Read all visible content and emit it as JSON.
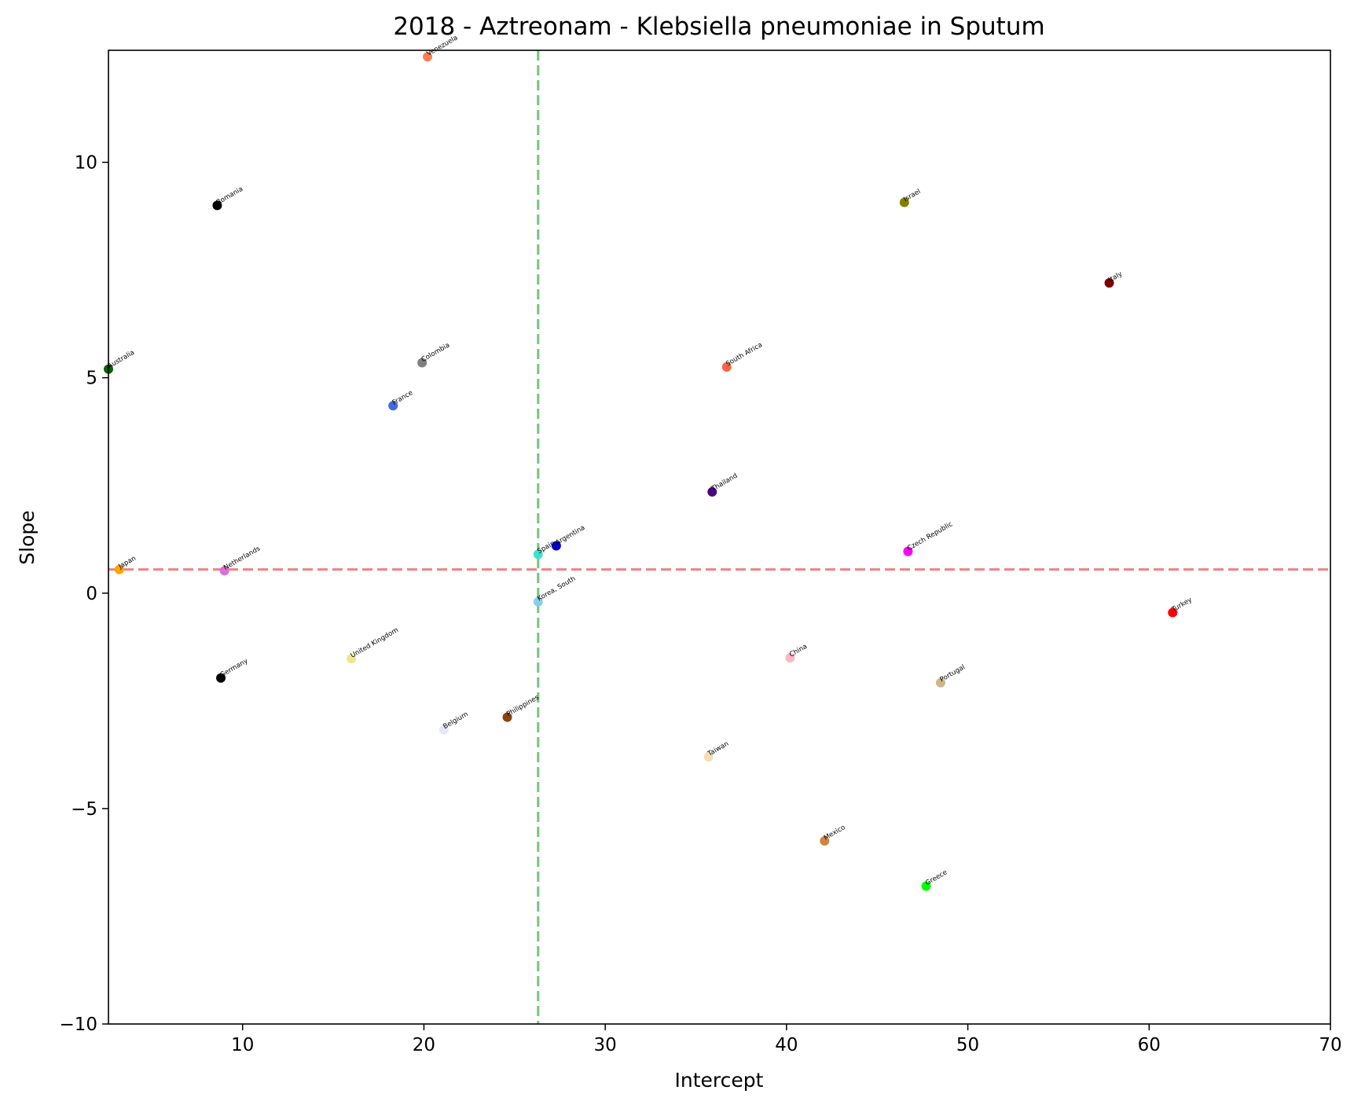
{
  "chart_data": {
    "type": "scatter",
    "title": "2018 - Aztreonam - Klebsiella pneumoniae in Sputum",
    "xlabel": "Intercept",
    "ylabel": "Slope",
    "xlim": [
      2.6,
      70
    ],
    "ylim": [
      -10,
      12.6
    ],
    "xticks": [
      10,
      20,
      30,
      40,
      50,
      60,
      70
    ],
    "yticks": [
      -10,
      -5,
      0,
      5,
      10
    ],
    "grid": false,
    "reference_lines": [
      {
        "orientation": "horizontal",
        "value": 0.55,
        "color": "#f08080"
      },
      {
        "orientation": "vertical",
        "value": 26.3,
        "color": "#4caf50"
      }
    ],
    "points": [
      {
        "label": "Venezuela",
        "x": 20.2,
        "y": 12.45,
        "color": "#ff7f50"
      },
      {
        "label": "Romania",
        "x": 8.6,
        "y": 9.0,
        "color": "#000000"
      },
      {
        "label": "Israel",
        "x": 46.5,
        "y": 9.07,
        "color": "#808000"
      },
      {
        "label": "Italy",
        "x": 57.8,
        "y": 7.2,
        "color": "#800000"
      },
      {
        "label": "Australia",
        "x": 2.6,
        "y": 5.2,
        "color": "#006400"
      },
      {
        "label": "Colombia",
        "x": 19.9,
        "y": 5.35,
        "color": "#808080"
      },
      {
        "label": "South Africa",
        "x": 36.7,
        "y": 5.25,
        "color": "#ff6347"
      },
      {
        "label": "France",
        "x": 18.3,
        "y": 4.35,
        "color": "#4169e1"
      },
      {
        "label": "Thailand",
        "x": 35.9,
        "y": 2.35,
        "color": "#4b0082"
      },
      {
        "label": "Spain",
        "x": 26.3,
        "y": 0.9,
        "color": "#40e0d0"
      },
      {
        "label": "Argentina",
        "x": 27.3,
        "y": 1.1,
        "color": "#0000cd"
      },
      {
        "label": "Czech Republic",
        "x": 46.7,
        "y": 0.97,
        "color": "#ff00ff"
      },
      {
        "label": "Japan",
        "x": 3.2,
        "y": 0.55,
        "color": "#ffa500"
      },
      {
        "label": "Netherlands",
        "x": 9.0,
        "y": 0.52,
        "color": "#da70d6"
      },
      {
        "label": "Korea, South",
        "x": 26.3,
        "y": -0.2,
        "color": "#87ceeb"
      },
      {
        "label": "Turkey",
        "x": 61.3,
        "y": -0.45,
        "color": "#ff0000"
      },
      {
        "label": "United Kingdom",
        "x": 16.0,
        "y": -1.52,
        "color": "#f0e68c"
      },
      {
        "label": "China",
        "x": 40.2,
        "y": -1.5,
        "color": "#ffb6c1"
      },
      {
        "label": "Germany",
        "x": 8.8,
        "y": -1.97,
        "color": "#000000"
      },
      {
        "label": "Portugal",
        "x": 48.5,
        "y": -2.08,
        "color": "#d2b48c"
      },
      {
        "label": "Philippines",
        "x": 24.6,
        "y": -2.88,
        "color": "#8b4513"
      },
      {
        "label": "Belgium",
        "x": 21.1,
        "y": -3.17,
        "color": "#e6e6fa"
      },
      {
        "label": "Taiwan",
        "x": 35.7,
        "y": -3.8,
        "color": "#f5deb3"
      },
      {
        "label": "Mexico",
        "x": 42.1,
        "y": -5.75,
        "color": "#cd853f"
      },
      {
        "label": "Greece",
        "x": 47.7,
        "y": -6.8,
        "color": "#00ff00"
      }
    ]
  }
}
